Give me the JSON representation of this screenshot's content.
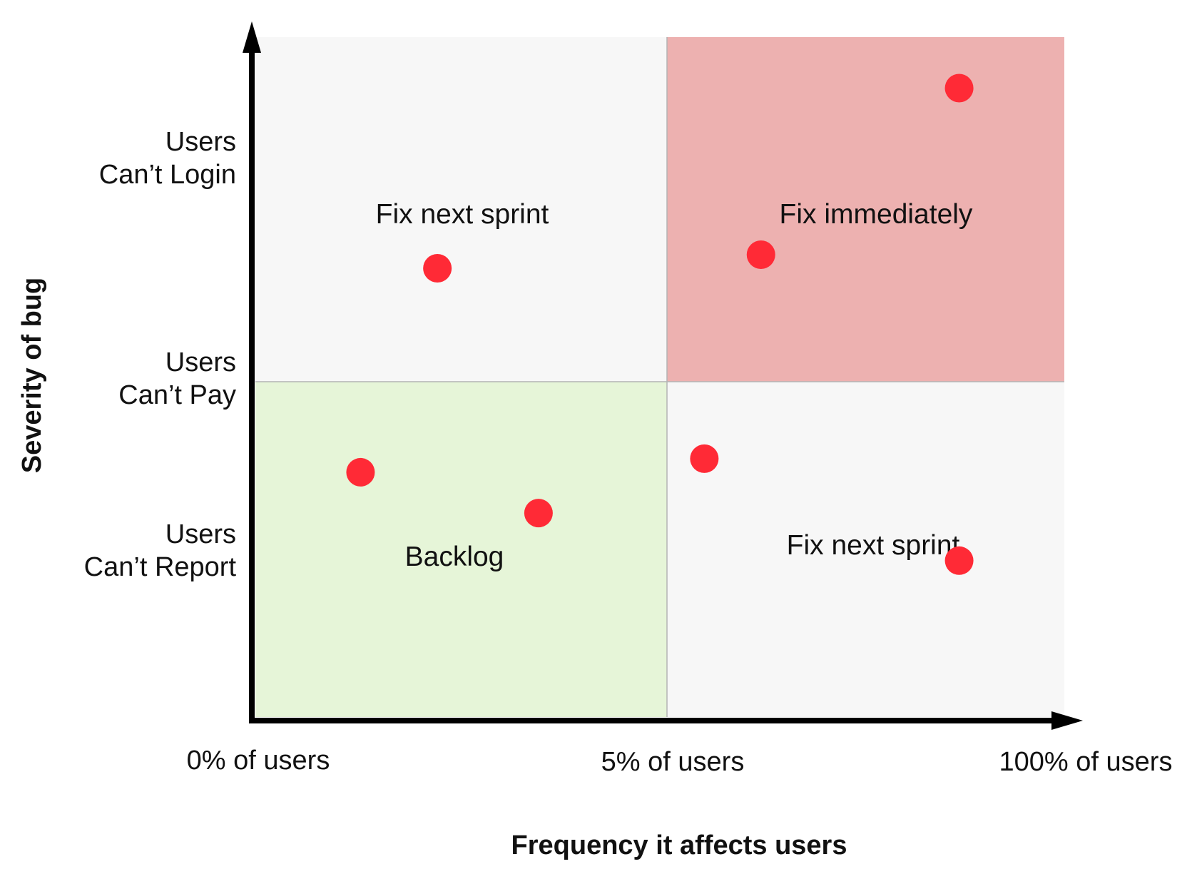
{
  "chart_data": {
    "type": "scatter",
    "xlabel": "Frequency it affects users",
    "ylabel": "Severity of bug",
    "x_ticks": [
      "0% of users",
      "5% of users",
      "100% of users"
    ],
    "y_ticks": [
      {
        "line1": "Users",
        "line2": "Can’t Login"
      },
      {
        "line1": "Users",
        "line2": "Can’t Pay"
      },
      {
        "line1": "Users",
        "line2": "Can’t Report"
      }
    ],
    "quadrants": [
      {
        "label": "Fix next sprint",
        "region": "top-left",
        "color": "#f7f7f7"
      },
      {
        "label": "Fix immediately",
        "region": "top-right",
        "color": "#edb1b0"
      },
      {
        "label": "Backlog",
        "region": "bottom-left",
        "color": "#e6f5d8"
      },
      {
        "label": "Fix next sprint",
        "region": "bottom-right",
        "color": "#f7f7f7"
      }
    ],
    "x_range": [
      0,
      1
    ],
    "y_range": [
      0,
      1
    ],
    "points": [
      {
        "x": 0.87,
        "y": 0.925
      },
      {
        "x": 0.625,
        "y": 0.68
      },
      {
        "x": 0.225,
        "y": 0.66
      },
      {
        "x": 0.555,
        "y": 0.38
      },
      {
        "x": 0.13,
        "y": 0.36
      },
      {
        "x": 0.35,
        "y": 0.3
      },
      {
        "x": 0.87,
        "y": 0.23
      }
    ],
    "point_color": "#ff2a36",
    "grid": false,
    "legend": "none"
  }
}
